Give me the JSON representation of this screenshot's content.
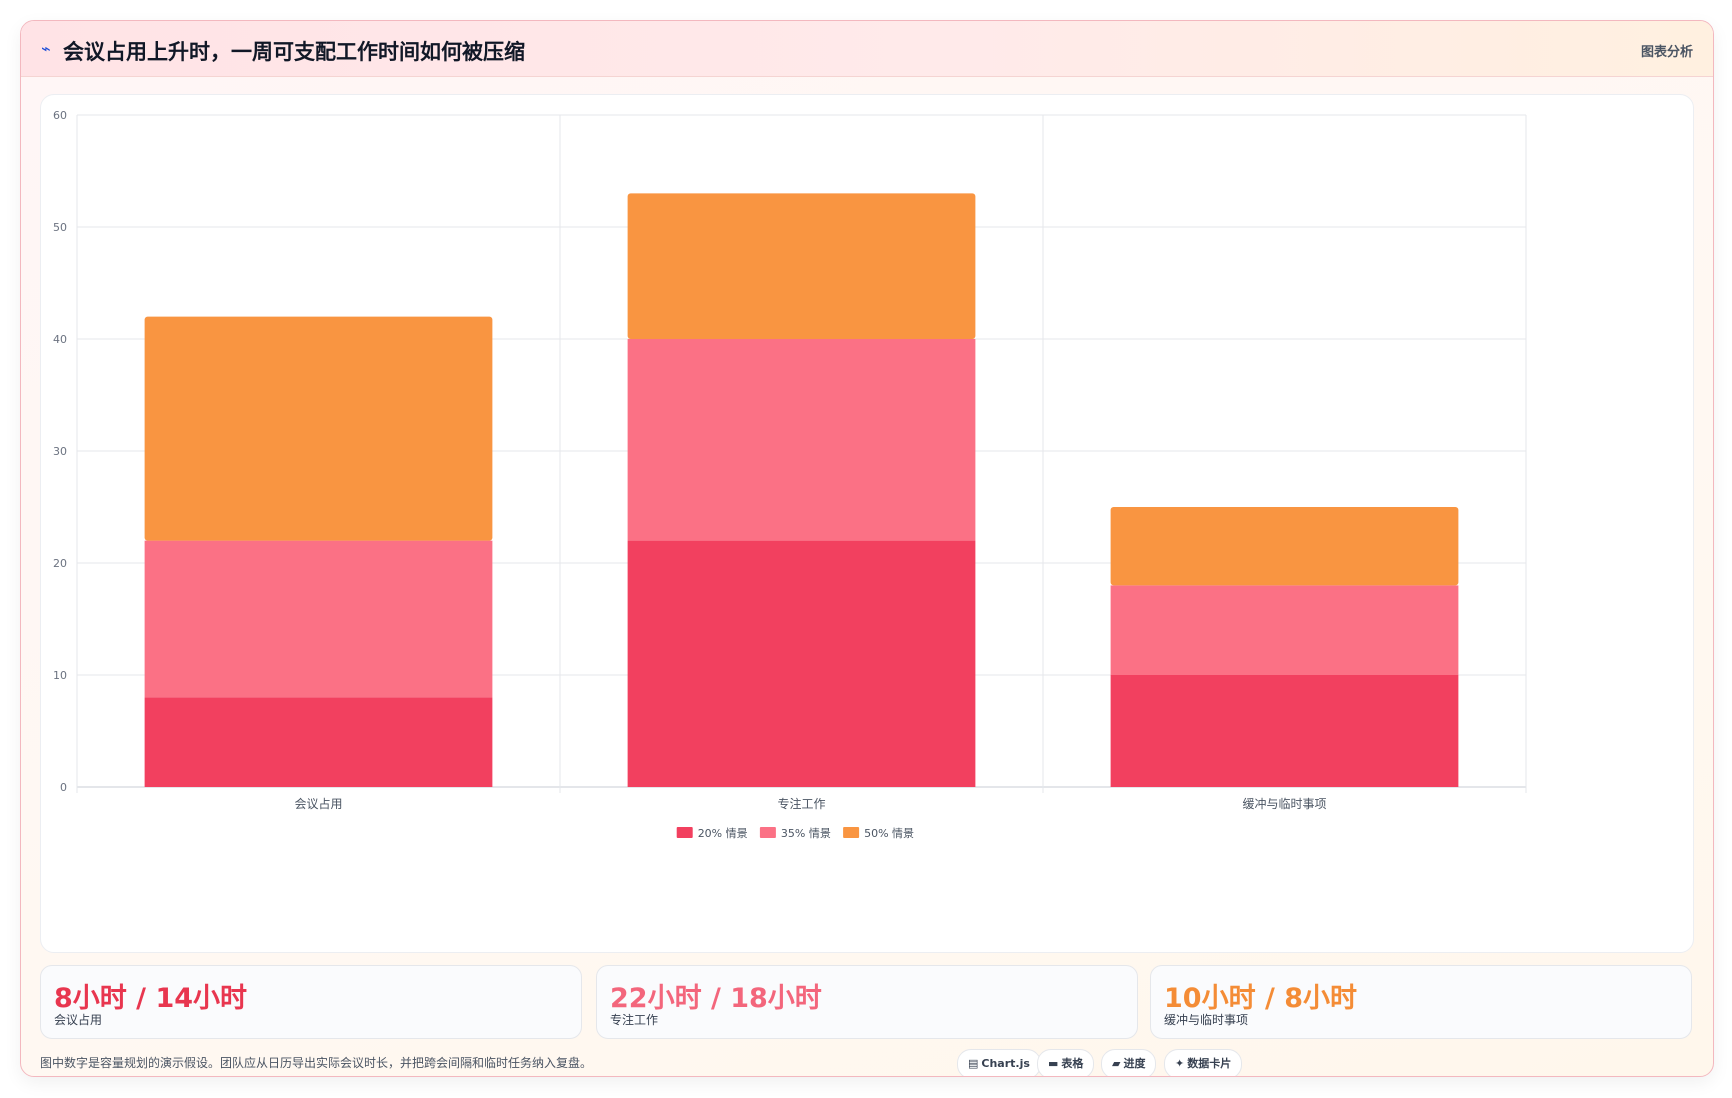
{
  "header": {
    "icon": "trend-line-icon",
    "title": "会议占用上升时，一周可支配工作时间如何被压缩",
    "link_label": "图表分析"
  },
  "chart_data": {
    "type": "bar",
    "stacked": true,
    "categories": [
      "会议占用",
      "专注工作",
      "缓冲与临时事项"
    ],
    "series": [
      {
        "name": "20% 情景",
        "values": [
          8,
          22,
          10
        ],
        "color": "#f2405f"
      },
      {
        "name": "35% 情景",
        "values": [
          14,
          18,
          8
        ],
        "color": "#fb7185"
      },
      {
        "name": "50% 情景",
        "values": [
          20,
          13,
          7
        ],
        "color": "#f99541"
      }
    ],
    "ylim": [
      0,
      60
    ],
    "yticks": [
      "0",
      "10",
      "20",
      "30",
      "40",
      "50",
      "60"
    ],
    "grid": true,
    "legend_position": "bottom"
  },
  "stats": [
    {
      "value": "8小时 / 14小时",
      "label": "会议占用",
      "color": "#e8364f"
    },
    {
      "value": "22小时 / 18小时",
      "label": "专注工作",
      "color": "#f3667c"
    },
    {
      "value": "10小时 / 8小时",
      "label": "缓冲与临时事项",
      "color": "#f48c36"
    }
  ],
  "footnote": "图中数字是容量规划的演示假设。团队应从日历导出实际会议时长，并把跨会间隔和临时任务纳入复盘。",
  "chips": [
    {
      "icon": "chart-icon",
      "glyph": "▤",
      "label": "Chart.js"
    },
    {
      "icon": "table-icon",
      "glyph": "▬",
      "label": "表格"
    },
    {
      "icon": "progress-icon",
      "glyph": "▰",
      "label": "进度"
    },
    {
      "icon": "sparkle-icon",
      "glyph": "✦",
      "label": "数据卡片"
    }
  ]
}
